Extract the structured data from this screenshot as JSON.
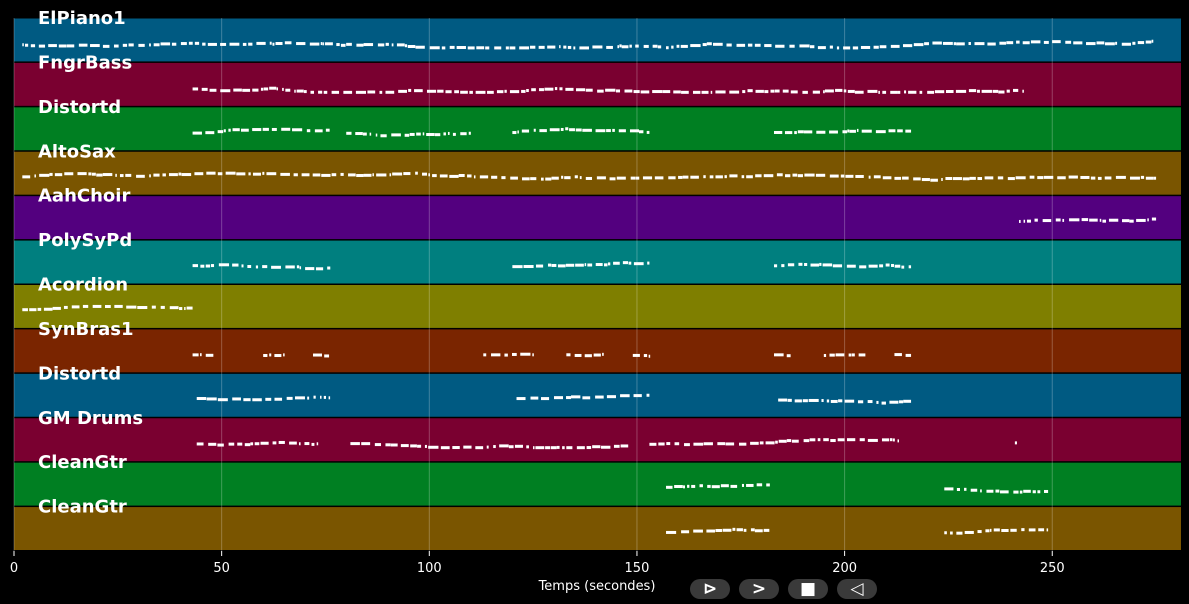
{
  "chart_data": {
    "type": "piano-roll",
    "xlabel": "Temps (secondes)",
    "xlim": [
      0,
      281
    ],
    "xticks": [
      0,
      50,
      100,
      150,
      200,
      250
    ],
    "grid": "vertical",
    "background": "#000000",
    "tracks": [
      {
        "name": "ElPiano1",
        "color": "#005a82",
        "segments": [
          [
            2,
            275
          ]
        ]
      },
      {
        "name": "FngrBass",
        "color": "#7a0030",
        "segments": [
          [
            43,
            243
          ]
        ]
      },
      {
        "name": "Distortd",
        "color": "#007f22",
        "segments": [
          [
            43,
            76
          ],
          [
            80,
            110
          ],
          [
            120,
            153
          ],
          [
            183,
            216
          ]
        ]
      },
      {
        "name": "AltoSax",
        "color": "#7a5500",
        "segments": [
          [
            2,
            275
          ]
        ]
      },
      {
        "name": "AahChoir",
        "color": "#53007f",
        "segments": [
          [
            242,
            275
          ]
        ]
      },
      {
        "name": "PolySyPd",
        "color": "#007f7f",
        "segments": [
          [
            43,
            77
          ],
          [
            120,
            153
          ],
          [
            183,
            216
          ]
        ]
      },
      {
        "name": "Acordion",
        "color": "#7f7f00",
        "segments": [
          [
            2,
            43
          ]
        ]
      },
      {
        "name": "SynBras1",
        "color": "#7a2500",
        "segments": [
          [
            43,
            48
          ],
          [
            60,
            65
          ],
          [
            72,
            76
          ],
          [
            113,
            125
          ],
          [
            133,
            142
          ],
          [
            149,
            153
          ],
          [
            183,
            187
          ],
          [
            195,
            205
          ],
          [
            212,
            216
          ]
        ]
      },
      {
        "name": "Distortd",
        "color": "#005a82",
        "segments": [
          [
            44,
            76
          ],
          [
            121,
            153
          ],
          [
            184,
            216
          ]
        ]
      },
      {
        "name": "GM Drums",
        "color": "#7a0030",
        "segments": [
          [
            44,
            73
          ],
          [
            81,
            148
          ],
          [
            153,
            213
          ],
          [
            241,
            241.5
          ]
        ]
      },
      {
        "name": "CleanGtr",
        "color": "#007f22",
        "segments": [
          [
            157,
            182
          ],
          [
            224,
            249
          ]
        ]
      },
      {
        "name": "CleanGtr",
        "color": "#7a5500",
        "segments": [
          [
            157,
            182
          ],
          [
            224,
            249
          ]
        ]
      }
    ]
  },
  "controls": [
    {
      "name": "play-outline-button",
      "glyph": "⊳"
    },
    {
      "name": "forward-button",
      "glyph": ">"
    },
    {
      "name": "stop-button",
      "glyph": "■"
    },
    {
      "name": "rewind-button",
      "glyph": "◁"
    }
  ]
}
